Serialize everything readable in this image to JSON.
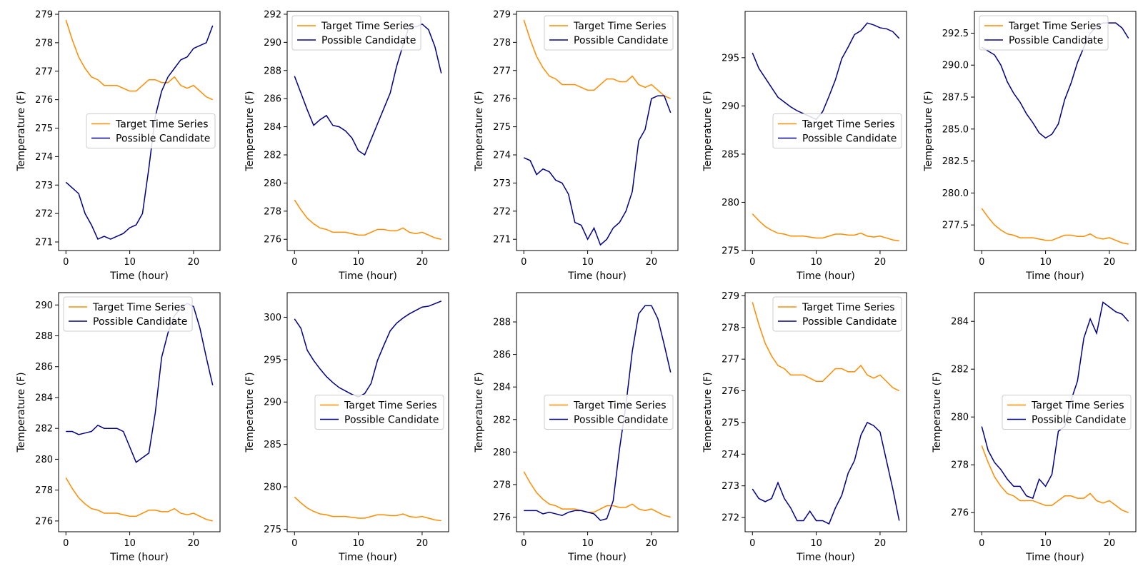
{
  "colors": {
    "target": "#ff8c00",
    "candidate": "#00008b",
    "frame": "#000000",
    "background": "#ffffff"
  },
  "chart_data": [
    {
      "type": "line",
      "xlabel": "Time (hour)",
      "ylabel": "Temperature (F)",
      "xlim": [
        -1.15,
        24.15
      ],
      "ylim": [
        270.7,
        279.1
      ],
      "xticks": [
        0,
        10,
        20
      ],
      "yticks": [
        271,
        272,
        273,
        274,
        275,
        276,
        277,
        278,
        279
      ],
      "yticklabels": [
        "271",
        "272",
        "273",
        "274",
        "275",
        "276",
        "277",
        "278",
        "279"
      ],
      "legend": "center-right",
      "series": [
        {
          "name": "Target Time Series",
          "key": "target",
          "values": [
            278.8,
            278.1,
            277.5,
            277.1,
            276.8,
            276.7,
            276.5,
            276.5,
            276.5,
            276.4,
            276.3,
            276.3,
            276.5,
            276.7,
            276.7,
            276.6,
            276.6,
            276.8,
            276.5,
            276.4,
            276.5,
            276.3,
            276.1,
            276.0
          ]
        },
        {
          "name": "Possible Candidate",
          "key": "candidate",
          "values": [
            273.1,
            272.9,
            272.7,
            272.0,
            271.6,
            271.1,
            271.2,
            271.1,
            271.2,
            271.3,
            271.5,
            271.6,
            272.0,
            273.6,
            275.4,
            276.3,
            276.8,
            277.1,
            277.4,
            277.5,
            277.8,
            277.9,
            278.0,
            278.6
          ]
        }
      ]
    },
    {
      "type": "line",
      "xlabel": "Time (hour)",
      "ylabel": "Temperature (F)",
      "xlim": [
        -1.15,
        24.15
      ],
      "ylim": [
        275.2,
        292.2
      ],
      "xticks": [
        0,
        10,
        20
      ],
      "yticks": [
        276,
        278,
        280,
        282,
        284,
        286,
        288,
        290,
        292
      ],
      "yticklabels": [
        "276",
        "278",
        "280",
        "282",
        "284",
        "286",
        "288",
        "290",
        "292"
      ],
      "legend": "top-left",
      "series": [
        {
          "name": "Target Time Series",
          "key": "target",
          "values": [
            278.8,
            278.1,
            277.5,
            277.1,
            276.8,
            276.7,
            276.5,
            276.5,
            276.5,
            276.4,
            276.3,
            276.3,
            276.5,
            276.7,
            276.7,
            276.6,
            276.6,
            276.8,
            276.5,
            276.4,
            276.5,
            276.3,
            276.1,
            276.0
          ]
        },
        {
          "name": "Possible Candidate",
          "key": "candidate",
          "values": [
            287.6,
            286.4,
            285.2,
            284.1,
            284.5,
            284.8,
            284.1,
            284.0,
            283.7,
            283.2,
            282.3,
            282.0,
            283.1,
            284.2,
            285.3,
            286.4,
            288.3,
            289.8,
            291.2,
            291.1,
            291.3,
            290.9,
            289.7,
            287.8
          ]
        }
      ]
    },
    {
      "type": "line",
      "xlabel": "Time (hour)",
      "ylabel": "Temperature (F)",
      "xlim": [
        -1.15,
        24.15
      ],
      "ylim": [
        270.6,
        279.1
      ],
      "xticks": [
        0,
        10,
        20
      ],
      "yticks": [
        271,
        272,
        273,
        274,
        275,
        276,
        277,
        278,
        279
      ],
      "yticklabels": [
        "271",
        "272",
        "273",
        "274",
        "275",
        "276",
        "277",
        "278",
        "279"
      ],
      "legend": "top-right",
      "series": [
        {
          "name": "Target Time Series",
          "key": "target",
          "values": [
            278.8,
            278.1,
            277.5,
            277.1,
            276.8,
            276.7,
            276.5,
            276.5,
            276.5,
            276.4,
            276.3,
            276.3,
            276.5,
            276.7,
            276.7,
            276.6,
            276.6,
            276.8,
            276.5,
            276.4,
            276.5,
            276.3,
            276.1,
            276.0
          ]
        },
        {
          "name": "Possible Candidate",
          "key": "candidate",
          "values": [
            273.9,
            273.8,
            273.3,
            273.5,
            273.4,
            273.1,
            273.0,
            272.6,
            271.6,
            271.5,
            271.0,
            271.4,
            270.8,
            271.0,
            271.4,
            271.6,
            272.0,
            272.7,
            274.5,
            274.9,
            276.0,
            276.1,
            276.1,
            275.5
          ]
        }
      ]
    },
    {
      "type": "line",
      "xlabel": "Time (hour)",
      "ylabel": "Temperature (F)",
      "xlim": [
        -1.15,
        24.15
      ],
      "ylim": [
        275.0,
        299.8
      ],
      "xticks": [
        0,
        10,
        20
      ],
      "yticks": [
        275,
        280,
        285,
        290,
        295
      ],
      "yticklabels": [
        "275",
        "280",
        "285",
        "290",
        "295"
      ],
      "legend": "center-right",
      "series": [
        {
          "name": "Target Time Series",
          "key": "target",
          "values": [
            278.8,
            278.1,
            277.5,
            277.1,
            276.8,
            276.7,
            276.5,
            276.5,
            276.5,
            276.4,
            276.3,
            276.3,
            276.5,
            276.7,
            276.7,
            276.6,
            276.6,
            276.8,
            276.5,
            276.4,
            276.5,
            276.3,
            276.1,
            276.0
          ]
        },
        {
          "name": "Possible Candidate",
          "key": "candidate",
          "values": [
            295.5,
            293.9,
            292.9,
            291.9,
            290.9,
            290.4,
            289.9,
            289.5,
            289.2,
            288.9,
            288.6,
            289.4,
            291.0,
            292.7,
            294.9,
            296.1,
            297.4,
            297.8,
            298.6,
            298.4,
            298.1,
            298.0,
            297.7,
            297.0
          ]
        }
      ]
    },
    {
      "type": "line",
      "xlabel": "Time (hour)",
      "ylabel": "Temperature (F)",
      "xlim": [
        -1.15,
        24.15
      ],
      "ylim": [
        275.5,
        294.2
      ],
      "xticks": [
        0,
        10,
        20
      ],
      "yticks": [
        277.5,
        280.0,
        282.5,
        285.0,
        287.5,
        290.0,
        292.5
      ],
      "yticklabels": [
        "277.5",
        "280.0",
        "282.5",
        "285.0",
        "287.5",
        "290.0",
        "292.5"
      ],
      "legend": "top-left",
      "series": [
        {
          "name": "Target Time Series",
          "key": "target",
          "values": [
            278.8,
            278.1,
            277.5,
            277.1,
            276.8,
            276.7,
            276.5,
            276.5,
            276.5,
            276.4,
            276.3,
            276.3,
            276.5,
            276.7,
            276.7,
            276.6,
            276.6,
            276.8,
            276.5,
            276.4,
            276.5,
            276.3,
            276.1,
            276.0
          ]
        },
        {
          "name": "Possible Candidate",
          "key": "candidate",
          "values": [
            291.4,
            291.1,
            290.8,
            290.0,
            288.7,
            287.8,
            287.1,
            286.2,
            285.5,
            284.7,
            284.3,
            284.6,
            285.4,
            287.3,
            288.6,
            290.2,
            291.4,
            292.5,
            293.0,
            293.3,
            293.3,
            293.3,
            292.9,
            292.1
          ]
        }
      ]
    },
    {
      "type": "line",
      "xlabel": "Time (hour)",
      "ylabel": "Temperature (F)",
      "xlim": [
        -1.15,
        24.15
      ],
      "ylim": [
        275.3,
        290.8
      ],
      "xticks": [
        0,
        10,
        20
      ],
      "yticks": [
        276,
        278,
        280,
        282,
        284,
        286,
        288,
        290
      ],
      "yticklabels": [
        "276",
        "278",
        "280",
        "282",
        "284",
        "286",
        "288",
        "290"
      ],
      "legend": "top-left",
      "series": [
        {
          "name": "Target Time Series",
          "key": "target",
          "values": [
            278.8,
            278.1,
            277.5,
            277.1,
            276.8,
            276.7,
            276.5,
            276.5,
            276.5,
            276.4,
            276.3,
            276.3,
            276.5,
            276.7,
            276.7,
            276.6,
            276.6,
            276.8,
            276.5,
            276.4,
            276.5,
            276.3,
            276.1,
            276.0
          ]
        },
        {
          "name": "Possible Candidate",
          "key": "candidate",
          "values": [
            281.8,
            281.8,
            281.6,
            281.7,
            281.8,
            282.2,
            282.0,
            282.0,
            282.0,
            281.8,
            280.8,
            279.8,
            280.1,
            280.4,
            283.0,
            286.6,
            288.2,
            289.3,
            289.8,
            290.1,
            289.9,
            288.5,
            286.6,
            284.8
          ]
        }
      ]
    },
    {
      "type": "line",
      "xlabel": "Time (hour)",
      "ylabel": "Temperature (F)",
      "xlim": [
        -1.15,
        24.15
      ],
      "ylim": [
        274.7,
        302.9
      ],
      "xticks": [
        0,
        10,
        20
      ],
      "yticks": [
        275,
        280,
        285,
        290,
        295,
        300
      ],
      "yticklabels": [
        "275",
        "280",
        "285",
        "290",
        "295",
        "300"
      ],
      "legend": "center-right",
      "series": [
        {
          "name": "Target Time Series",
          "key": "target",
          "values": [
            278.8,
            278.1,
            277.5,
            277.1,
            276.8,
            276.7,
            276.5,
            276.5,
            276.5,
            276.4,
            276.3,
            276.3,
            276.5,
            276.7,
            276.7,
            276.6,
            276.6,
            276.8,
            276.5,
            276.4,
            276.5,
            276.3,
            276.1,
            276.0
          ]
        },
        {
          "name": "Possible Candidate",
          "key": "candidate",
          "values": [
            299.8,
            298.7,
            296.1,
            294.9,
            293.9,
            293.0,
            292.3,
            291.7,
            291.3,
            290.9,
            290.6,
            291.0,
            292.2,
            294.9,
            296.7,
            298.4,
            299.3,
            299.9,
            300.4,
            300.8,
            301.2,
            301.3,
            301.6,
            301.9
          ]
        }
      ]
    },
    {
      "type": "line",
      "xlabel": "Time (hour)",
      "ylabel": "Temperature (F)",
      "xlim": [
        -1.15,
        24.15
      ],
      "ylim": [
        275.1,
        289.8
      ],
      "xticks": [
        0,
        10,
        20
      ],
      "yticks": [
        276,
        278,
        280,
        282,
        284,
        286,
        288
      ],
      "yticklabels": [
        "276",
        "278",
        "280",
        "282",
        "284",
        "286",
        "288"
      ],
      "legend": "center-right",
      "series": [
        {
          "name": "Target Time Series",
          "key": "target",
          "values": [
            278.8,
            278.1,
            277.5,
            277.1,
            276.8,
            276.7,
            276.5,
            276.5,
            276.5,
            276.4,
            276.3,
            276.3,
            276.5,
            276.7,
            276.7,
            276.6,
            276.6,
            276.8,
            276.5,
            276.4,
            276.5,
            276.3,
            276.1,
            276.0
          ]
        },
        {
          "name": "Possible Candidate",
          "key": "candidate",
          "values": [
            276.4,
            276.4,
            276.4,
            276.2,
            276.3,
            276.2,
            276.1,
            276.3,
            276.4,
            276.4,
            276.3,
            276.2,
            275.8,
            275.9,
            277.0,
            280.2,
            282.9,
            286.2,
            288.5,
            289.0,
            289.0,
            288.2,
            286.6,
            284.9
          ]
        }
      ]
    },
    {
      "type": "line",
      "xlabel": "Time (hour)",
      "ylabel": "Temperature (F)",
      "xlim": [
        -1.15,
        24.15
      ],
      "ylim": [
        271.55,
        279.1
      ],
      "xticks": [
        0,
        10,
        20
      ],
      "yticks": [
        272,
        273,
        274,
        275,
        276,
        277,
        278,
        279
      ],
      "yticklabels": [
        "272",
        "273",
        "274",
        "275",
        "276",
        "277",
        "278",
        "279"
      ],
      "legend": "top-right",
      "series": [
        {
          "name": "Target Time Series",
          "key": "target",
          "values": [
            278.8,
            278.1,
            277.5,
            277.1,
            276.8,
            276.7,
            276.5,
            276.5,
            276.5,
            276.4,
            276.3,
            276.3,
            276.5,
            276.7,
            276.7,
            276.6,
            276.6,
            276.8,
            276.5,
            276.4,
            276.5,
            276.3,
            276.1,
            276.0
          ]
        },
        {
          "name": "Possible Candidate",
          "key": "candidate",
          "values": [
            272.9,
            272.6,
            272.5,
            272.6,
            273.1,
            272.6,
            272.3,
            271.9,
            271.9,
            272.2,
            271.9,
            271.9,
            271.8,
            272.3,
            272.7,
            273.4,
            273.8,
            274.6,
            275.0,
            274.9,
            274.7,
            273.8,
            272.9,
            271.9
          ]
        }
      ]
    },
    {
      "type": "line",
      "xlabel": "Time (hour)",
      "ylabel": "Temperature (F)",
      "xlim": [
        -1.15,
        24.15
      ],
      "ylim": [
        275.2,
        285.2
      ],
      "xticks": [
        0,
        10,
        20
      ],
      "yticks": [
        276,
        278,
        280,
        282,
        284
      ],
      "yticklabels": [
        "276",
        "278",
        "280",
        "282",
        "284"
      ],
      "legend": "center-right",
      "series": [
        {
          "name": "Target Time Series",
          "key": "target",
          "values": [
            278.8,
            278.1,
            277.5,
            277.1,
            276.8,
            276.7,
            276.5,
            276.5,
            276.5,
            276.4,
            276.3,
            276.3,
            276.5,
            276.7,
            276.7,
            276.6,
            276.6,
            276.8,
            276.5,
            276.4,
            276.5,
            276.3,
            276.1,
            276.0
          ]
        },
        {
          "name": "Possible Candidate",
          "key": "candidate",
          "values": [
            279.6,
            278.6,
            278.1,
            277.8,
            277.4,
            277.1,
            277.1,
            276.7,
            276.6,
            277.4,
            277.1,
            277.6,
            279.4,
            279.6,
            280.7,
            281.5,
            283.3,
            284.1,
            283.5,
            284.8,
            284.6,
            284.4,
            284.3,
            284.0
          ]
        }
      ]
    }
  ]
}
